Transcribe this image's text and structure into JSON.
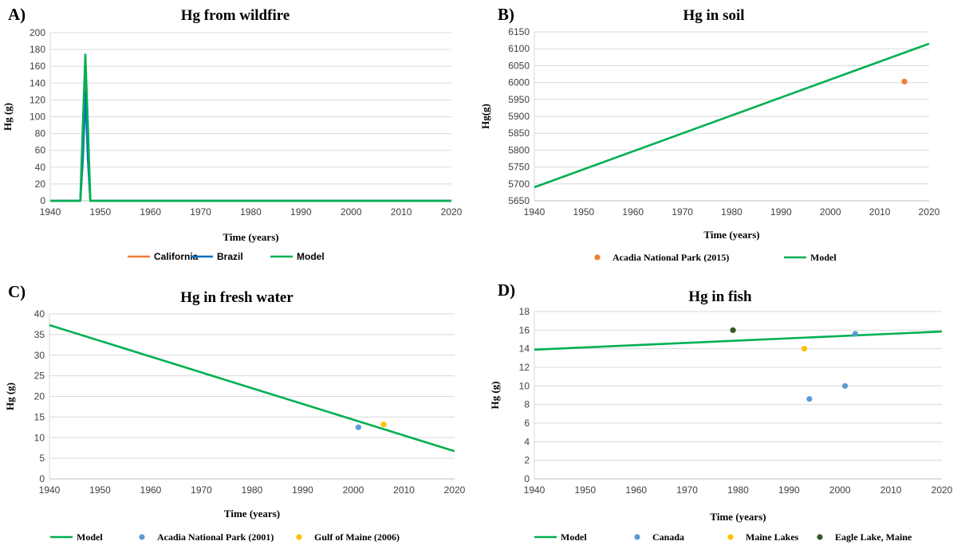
{
  "chart_data": [
    {
      "panel": "A)",
      "type": "line",
      "title": "Hg from wildfire",
      "xlabel": "Time (years)",
      "ylabel": "Hg (g)",
      "xlim": [
        1940,
        2020
      ],
      "ylim": [
        0,
        200
      ],
      "xticks": [
        1940,
        1950,
        1960,
        1970,
        1980,
        1990,
        2000,
        2010,
        2020
      ],
      "yticks": [
        0,
        20,
        40,
        60,
        80,
        100,
        120,
        140,
        160,
        180,
        200
      ],
      "grid": true,
      "legend_position": "bottom",
      "series": [
        {
          "name": "California",
          "kind": "line",
          "color": "#ed7d31",
          "x": [
            1940,
            1946,
            1946.5,
            1947,
            1947.5,
            1948,
            2020
          ],
          "y": [
            0,
            0,
            60,
            160,
            60,
            0,
            0
          ]
        },
        {
          "name": "Brazil",
          "kind": "line",
          "color": "#0070c0",
          "x": [
            1940,
            1946,
            1946.5,
            1947,
            1947.5,
            1948,
            2020
          ],
          "y": [
            0,
            0,
            50,
            130,
            50,
            0,
            0
          ]
        },
        {
          "name": "Model",
          "kind": "line",
          "color": "#00b050",
          "x": [
            1940,
            1946,
            1946.5,
            1947,
            1947.5,
            1948,
            2020
          ],
          "y": [
            0,
            0,
            90,
            174,
            90,
            0,
            0
          ]
        }
      ]
    },
    {
      "panel": "B)",
      "type": "line",
      "title": "Hg in soil",
      "xlabel": "Time (years)",
      "ylabel": "Hg(g)",
      "xlim": [
        1940,
        2020
      ],
      "ylim": [
        5650,
        6150
      ],
      "xticks": [
        1940,
        1950,
        1960,
        1970,
        1980,
        1990,
        2000,
        2010,
        2020
      ],
      "yticks": [
        5650,
        5700,
        5750,
        5800,
        5850,
        5900,
        5950,
        6000,
        6050,
        6100,
        6150
      ],
      "grid": true,
      "legend_position": "bottom",
      "series": [
        {
          "name": "Acadia National Park (2015)",
          "kind": "scatter",
          "color": "#ed7d31",
          "x": [
            2015
          ],
          "y": [
            6003
          ]
        },
        {
          "name": "Model",
          "kind": "line",
          "color": "#00b050",
          "x": [
            1940,
            2020
          ],
          "y": [
            5690,
            6115
          ]
        }
      ]
    },
    {
      "panel": "C)",
      "type": "line",
      "title": "Hg in fresh water",
      "xlabel": "Time (years)",
      "ylabel": "Hg (g)",
      "xlim": [
        1940,
        2020
      ],
      "ylim": [
        0,
        40
      ],
      "xticks": [
        1940,
        1950,
        1960,
        1970,
        1980,
        1990,
        2000,
        2010,
        2020
      ],
      "yticks": [
        0,
        5,
        10,
        15,
        20,
        25,
        30,
        35,
        40
      ],
      "grid": true,
      "legend_position": "bottom",
      "series": [
        {
          "name": "Model",
          "kind": "line",
          "color": "#00b050",
          "x": [
            1940,
            2020
          ],
          "y": [
            37.3,
            6.7
          ]
        },
        {
          "name": "Acadia National Park (2001)",
          "kind": "scatter",
          "color": "#5b9bd5",
          "x": [
            2001
          ],
          "y": [
            12.5
          ]
        },
        {
          "name": "Gulf of Maine (2006)",
          "kind": "scatter",
          "color": "#ffc000",
          "x": [
            2006
          ],
          "y": [
            13.2
          ]
        }
      ]
    },
    {
      "panel": "D)",
      "type": "line",
      "title": "Hg in fish",
      "xlabel": "Time (years)",
      "ylabel": "Hg (g)",
      "xlim": [
        1940,
        2020
      ],
      "ylim": [
        0,
        18
      ],
      "xticks": [
        1940,
        1950,
        1960,
        1970,
        1980,
        1990,
        2000,
        2010,
        2020
      ],
      "yticks": [
        0,
        2,
        4,
        6,
        8,
        10,
        12,
        14,
        16,
        18
      ],
      "grid": true,
      "legend_position": "bottom",
      "series": [
        {
          "name": "Model",
          "kind": "line",
          "color": "#00b050",
          "x": [
            1940,
            2020
          ],
          "y": [
            13.9,
            15.85
          ]
        },
        {
          "name": "Canada",
          "kind": "scatter",
          "color": "#5b9bd5",
          "x": [
            1994,
            2001,
            2003
          ],
          "y": [
            8.6,
            10.0,
            15.6
          ]
        },
        {
          "name": "Maine Lakes",
          "kind": "scatter",
          "color": "#ffc000",
          "x": [
            1993
          ],
          "y": [
            14.0
          ]
        },
        {
          "name": "Eagle Lake, Maine",
          "kind": "scatter",
          "color": "#375623",
          "x": [
            1979
          ],
          "y": [
            16.0
          ]
        }
      ]
    }
  ]
}
